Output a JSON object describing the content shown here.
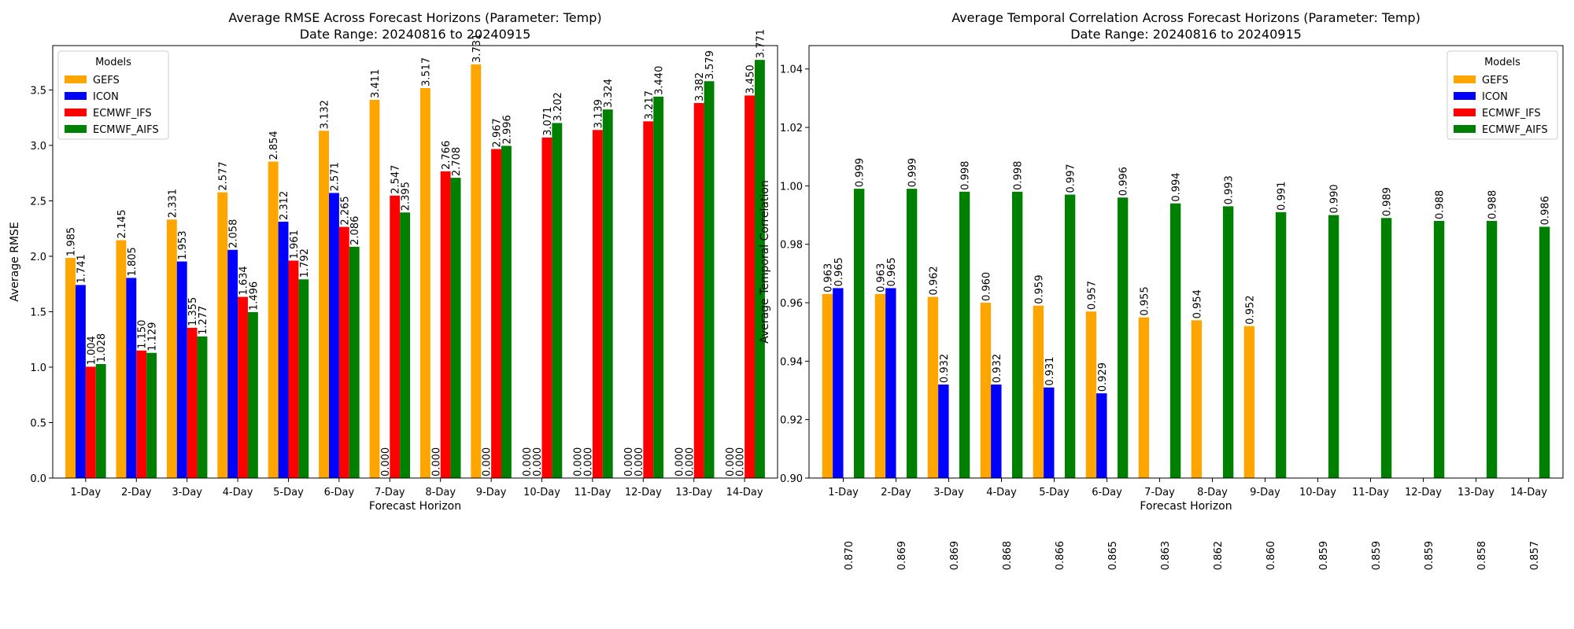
{
  "chart_data": [
    {
      "type": "bar",
      "title": "Average RMSE Across Forecast Horizons (Parameter: Temp)",
      "subtitle": "Date Range: 20240816 to 20240915",
      "xlabel": "Forecast Horizon",
      "ylabel": "Average RMSE",
      "ylim": [
        0,
        3.9
      ],
      "yticks": [
        0.0,
        0.5,
        1.0,
        1.5,
        2.0,
        2.5,
        3.0,
        3.5
      ],
      "ytick_labels": [
        "0.0",
        "0.5",
        "1.0",
        "1.5",
        "2.0",
        "2.5",
        "3.0",
        "3.5"
      ],
      "legend_title": "Models",
      "legend_position": "top-left",
      "categories": [
        "1-Day",
        "2-Day",
        "3-Day",
        "4-Day",
        "5-Day",
        "6-Day",
        "7-Day",
        "8-Day",
        "9-Day",
        "10-Day",
        "11-Day",
        "12-Day",
        "13-Day",
        "14-Day"
      ],
      "series": [
        {
          "name": "GEFS",
          "color": "#ffa500",
          "values": [
            1.985,
            2.145,
            2.331,
            2.577,
            2.854,
            3.132,
            3.411,
            3.517,
            3.731,
            null,
            null,
            null,
            null,
            null
          ],
          "labels": [
            "1.985",
            "2.145",
            "2.331",
            "2.577",
            "2.854",
            "3.132",
            "3.411",
            "3.517",
            "3.731",
            "0.000",
            "0.000",
            "0.000",
            "0.000",
            "0.000"
          ]
        },
        {
          "name": "ICON",
          "color": "#0000ff",
          "values": [
            1.741,
            1.805,
            1.953,
            2.058,
            2.312,
            2.571,
            0,
            0,
            0,
            0,
            0,
            0,
            0,
            0
          ],
          "labels": [
            "1.741",
            "1.805",
            "1.953",
            "2.058",
            "2.312",
            "2.571",
            "0.000",
            "0.000",
            "0.000",
            "0.000",
            "0.000",
            "0.000",
            "0.000",
            "0.000"
          ]
        },
        {
          "name": "ECMWF_IFS",
          "color": "#ff0000",
          "values": [
            1.004,
            1.15,
            1.355,
            1.634,
            1.961,
            2.265,
            2.547,
            2.766,
            2.967,
            3.071,
            3.139,
            3.217,
            3.382,
            3.45
          ],
          "labels": [
            "1.004",
            "1.150",
            "1.355",
            "1.634",
            "1.961",
            "2.265",
            "2.547",
            "2.766",
            "2.967",
            "3.071",
            "3.139",
            "3.217",
            "3.382",
            "3.450"
          ]
        },
        {
          "name": "ECMWF_AIFS",
          "color": "#008000",
          "values": [
            1.028,
            1.129,
            1.277,
            1.496,
            1.792,
            2.086,
            2.395,
            2.708,
            2.996,
            3.202,
            3.324,
            3.44,
            3.579,
            3.771
          ],
          "labels": [
            "1.028",
            "1.129",
            "1.277",
            "1.496",
            "1.792",
            "2.086",
            "2.395",
            "2.708",
            "2.996",
            "3.202",
            "3.324",
            "3.440",
            "3.579",
            "3.771"
          ]
        }
      ]
    },
    {
      "type": "bar",
      "title": "Average Temporal Correlation Across Forecast Horizons (Parameter: Temp)",
      "subtitle": "Date Range: 20240816 to 20240915",
      "xlabel": "Forecast Horizon",
      "ylabel": "Average Temporal Correlation",
      "ylim": [
        0.9,
        1.048
      ],
      "yticks": [
        0.9,
        0.92,
        0.94,
        0.96,
        0.98,
        1.0,
        1.02,
        1.04
      ],
      "ytick_labels": [
        "0.90",
        "0.92",
        "0.94",
        "0.96",
        "0.98",
        "1.00",
        "1.02",
        "1.04"
      ],
      "legend_title": "Models",
      "legend_position": "top-right",
      "categories": [
        "1-Day",
        "2-Day",
        "3-Day",
        "4-Day",
        "5-Day",
        "6-Day",
        "7-Day",
        "8-Day",
        "9-Day",
        "10-Day",
        "11-Day",
        "12-Day",
        "13-Day",
        "14-Day"
      ],
      "series": [
        {
          "name": "GEFS",
          "color": "#ffa500",
          "values": [
            0.963,
            0.963,
            0.962,
            0.96,
            0.959,
            0.957,
            0.955,
            0.954,
            0.952,
            null,
            null,
            null,
            null,
            null
          ],
          "labels": [
            "0.963",
            "0.963",
            "0.962",
            "0.960",
            "0.959",
            "0.957",
            "0.955",
            "0.954",
            "0.952",
            "",
            "",
            "",
            "",
            ""
          ]
        },
        {
          "name": "ICON",
          "color": "#0000ff",
          "values": [
            0.965,
            0.965,
            0.932,
            0.932,
            0.931,
            0.929,
            null,
            null,
            null,
            null,
            null,
            null,
            null,
            null
          ],
          "labels": [
            "0.965",
            "0.965",
            "0.932",
            "0.932",
            "0.931",
            "0.929",
            "",
            "",
            "",
            "",
            "",
            "",
            "",
            ""
          ]
        },
        {
          "name": "ECMWF_IFS",
          "color": "#ff0000",
          "values": [
            0.87,
            0.869,
            0.869,
            0.868,
            0.866,
            0.865,
            0.863,
            0.862,
            0.86,
            0.859,
            0.859,
            0.859,
            0.858,
            0.857
          ],
          "labels": [
            "0.870",
            "0.869",
            "0.869",
            "0.868",
            "0.866",
            "0.865",
            "0.863",
            "0.862",
            "0.860",
            "0.859",
            "0.859",
            "0.859",
            "0.858",
            "0.857"
          ]
        },
        {
          "name": "ECMWF_AIFS",
          "color": "#008000",
          "values": [
            0.999,
            0.999,
            0.998,
            0.998,
            0.997,
            0.996,
            0.994,
            0.993,
            0.991,
            0.99,
            0.989,
            0.988,
            0.988,
            0.986
          ],
          "labels": [
            "0.999",
            "0.999",
            "0.998",
            "0.998",
            "0.997",
            "0.996",
            "0.994",
            "0.993",
            "0.991",
            "0.990",
            "0.989",
            "0.988",
            "0.988",
            "0.986"
          ]
        }
      ]
    }
  ]
}
